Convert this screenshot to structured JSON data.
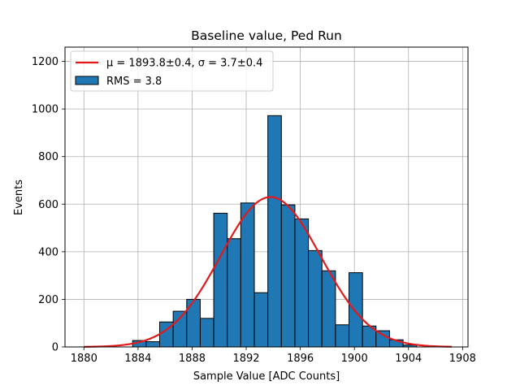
{
  "chart_data": {
    "type": "bar",
    "title": "Baseline value, Ped Run",
    "xlabel": "Sample Value [ADC Counts]",
    "ylabel": "Events",
    "xlim": [
      1878.6,
      1908.4
    ],
    "ylim": [
      0,
      1260
    ],
    "xticks": [
      1880,
      1884,
      1888,
      1892,
      1896,
      1900,
      1904,
      1908
    ],
    "yticks": [
      0,
      200,
      400,
      600,
      800,
      1000,
      1200
    ],
    "grid": true,
    "legend_position": "top-left",
    "bin_edges": [
      1883.6,
      1884.6,
      1885.6,
      1886.6,
      1887.6,
      1888.6,
      1889.6,
      1890.6,
      1891.6,
      1892.6,
      1893.6,
      1894.6,
      1895.6,
      1896.6,
      1897.6,
      1898.6,
      1899.6,
      1900.6,
      1901.6,
      1902.6,
      1903.6,
      1904.6
    ],
    "values": [
      27,
      22,
      105,
      150,
      200,
      120,
      562,
      455,
      605,
      228,
      972,
      597,
      538,
      405,
      320,
      93,
      312,
      88,
      68,
      30,
      8
    ],
    "histogram": {
      "name": "RMS = 3.8",
      "color": "#1f77b4",
      "edgecolor": "#000000"
    },
    "fit": {
      "name": "μ = 1893.8±0.4, σ = 3.7±0.4",
      "color": "#e31a1c",
      "function": "gaussian",
      "mu": 1893.8,
      "sigma": 3.7,
      "amplitude": 630,
      "x_range": [
        1880,
        1907.2
      ]
    }
  }
}
